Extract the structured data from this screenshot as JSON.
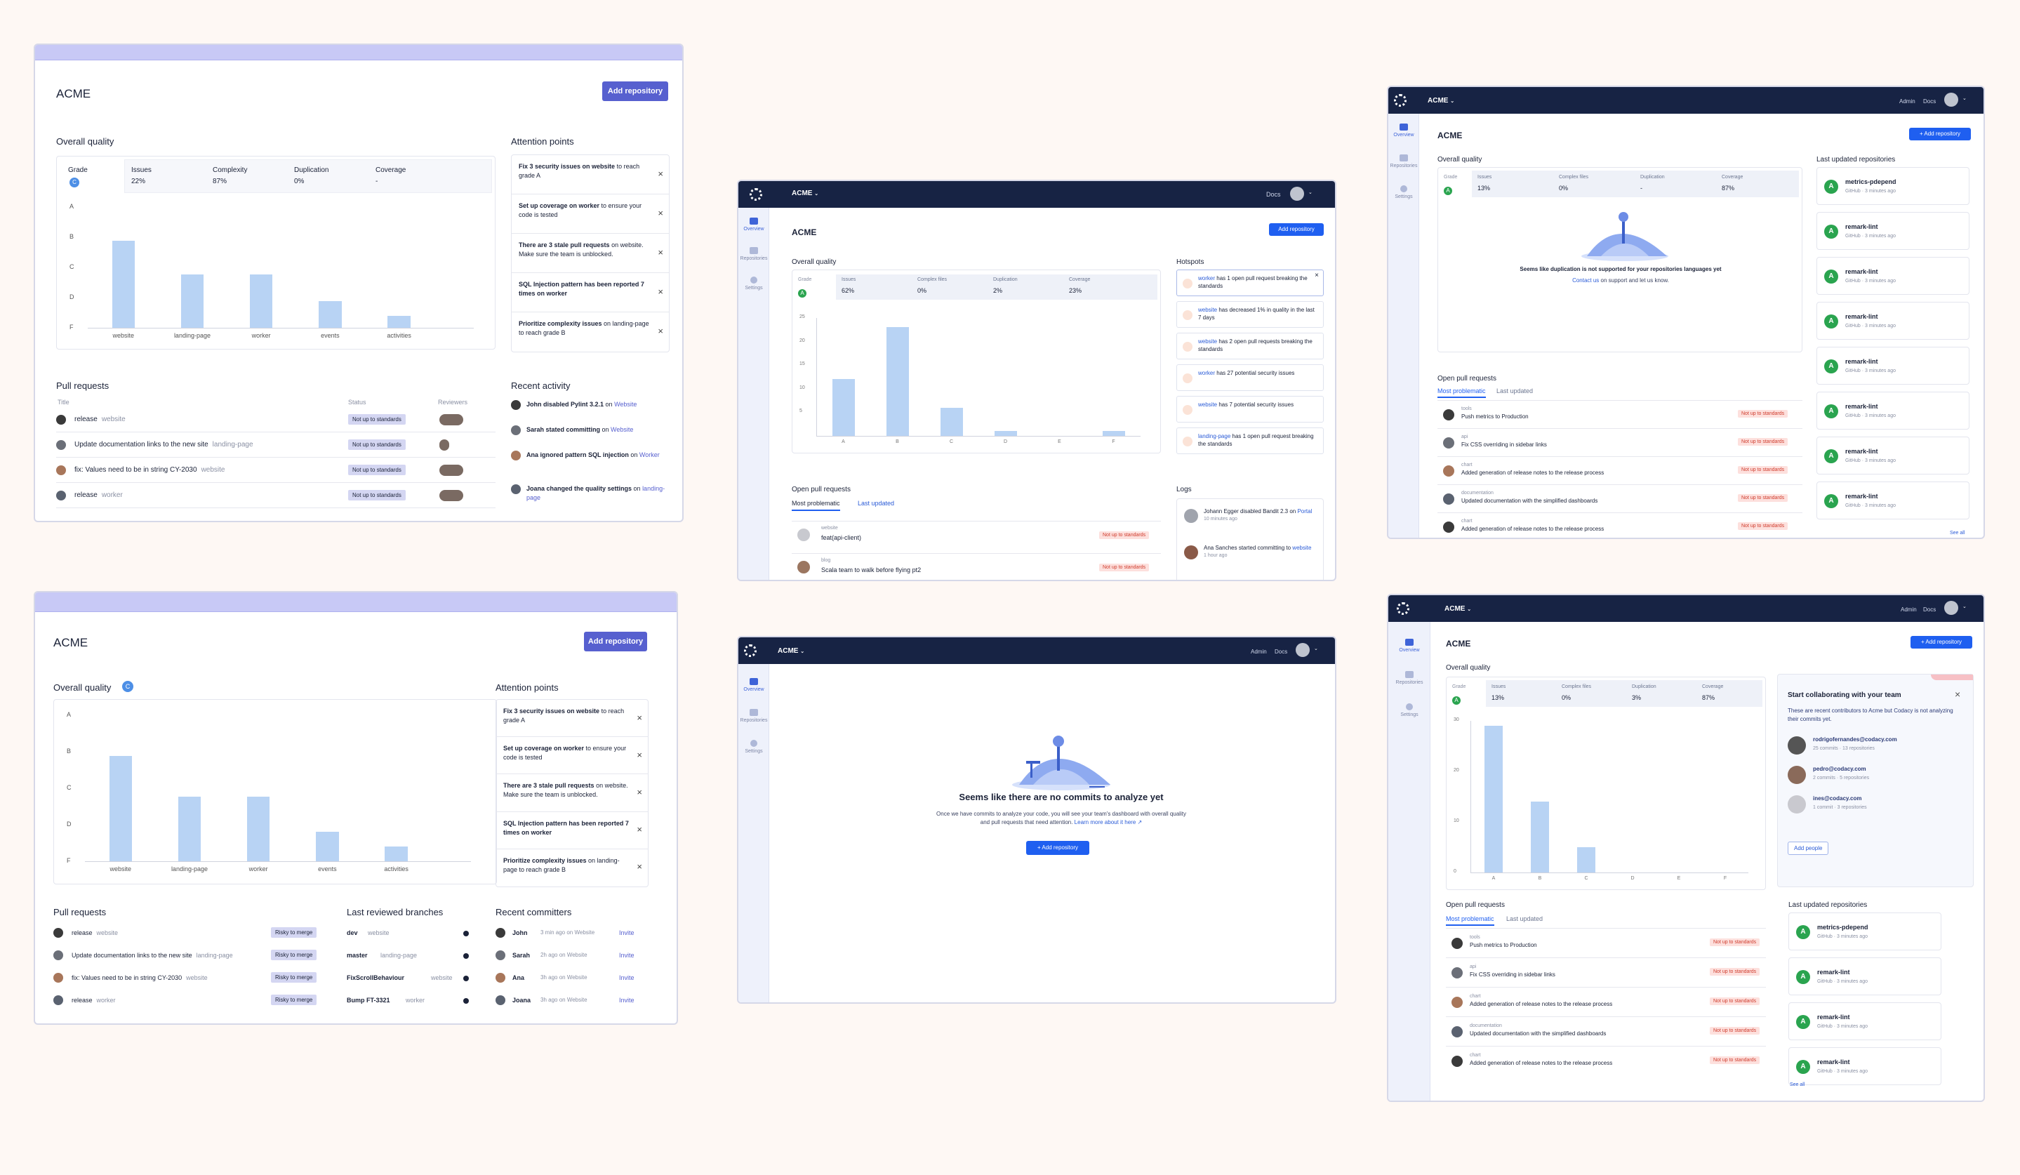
{
  "org": "ACME",
  "add_repository": "Add repository",
  "plus_add_repository": "+ Add repository",
  "overall_quality": "Overall quality",
  "attention_points": "Attention points",
  "hotspots": "Hotspots",
  "pull_requests": "Pull requests",
  "open_pull_requests": "Open pull requests",
  "recent_activity": "Recent activity",
  "logs": "Logs",
  "last_reviewed_branches": "Last reviewed branches",
  "recent_committers": "Recent committers",
  "last_updated_repositories": "Last updated repositories",
  "tabs": {
    "most": "Most problematic",
    "last": "Last updated"
  },
  "nav": {
    "overview": "Overview",
    "repositories": "Repositories",
    "settings": "Settings",
    "admin": "Admin",
    "docs": "Docs"
  },
  "see_all": "See all",
  "card1": {
    "stats": [
      {
        "label": "Grade",
        "value": "C"
      },
      {
        "label": "Issues",
        "value": "22%"
      },
      {
        "label": "Complexity",
        "value": "87%"
      },
      {
        "label": "Duplication",
        "value": "0%"
      },
      {
        "label": "Coverage",
        "value": "-"
      }
    ],
    "grades": [
      "A",
      "B",
      "C",
      "D",
      "F"
    ],
    "chart_data": {
      "type": "bar",
      "categories": [
        "website",
        "landing-page",
        "worker",
        "events",
        "activities"
      ],
      "values": [
        3.6,
        2.2,
        2.2,
        1.1,
        0.5
      ],
      "ylim": [
        0,
        5
      ]
    },
    "attention": [
      {
        "bold": "Fix 3 security issues on website",
        "rest": " to reach grade A"
      },
      {
        "bold": "Set up coverage on worker",
        "rest": " to ensure your code is tested"
      },
      {
        "bold": "There are 3 stale pull requests",
        "rest": " on website. Make sure the team is unblocked."
      },
      {
        "bold": "SQL Injection pattern has been reported 7 times on worker",
        "rest": ""
      },
      {
        "bold": "Prioritize complexity issues",
        "rest": " on landing-page to reach grade B"
      }
    ],
    "pr_headers": {
      "title": "Title",
      "status": "Status",
      "reviewers": "Reviewers"
    },
    "prs": [
      {
        "title": "release",
        "repo": "website",
        "status": "Not up to standards"
      },
      {
        "title": "Update documentation links to the new site",
        "repo": "landing-page",
        "status": "Not up to standards"
      },
      {
        "title": "fix: Values need to be in string CY-2030",
        "repo": "website",
        "status": "Not up to standards"
      },
      {
        "title": "release",
        "repo": "worker",
        "status": "Not up to standards"
      }
    ],
    "activity": [
      {
        "who": "John",
        "act": " disabled Pylint 3.2.1",
        "on": " on ",
        "target": "Website"
      },
      {
        "who": "Sarah",
        "act": " stated committing",
        "on": " on ",
        "target": "Website"
      },
      {
        "who": "Ana",
        "act": " ignored pattern SQL injection",
        "on": " on ",
        "target": "Worker"
      },
      {
        "who": "Joana",
        "act": " changed the quality settings",
        "on": " on ",
        "target": "landing-page"
      }
    ]
  },
  "card2": {
    "stats": [
      {
        "label": "Grade",
        "value": "A"
      },
      {
        "label": "Issues",
        "value": "62%"
      },
      {
        "label": "Complex files",
        "value": "0%"
      },
      {
        "label": "Duplication",
        "value": "2%"
      },
      {
        "label": "Coverage",
        "value": "23%"
      }
    ],
    "yticks": [
      "25",
      "20",
      "15",
      "10",
      "5"
    ],
    "chart_data": {
      "type": "bar",
      "categories": [
        "A",
        "B",
        "C",
        "D",
        "E",
        "F"
      ],
      "values": [
        12,
        23,
        6,
        1,
        0,
        1
      ],
      "ylim": [
        0,
        25
      ]
    },
    "hotspots": [
      {
        "repo": "worker",
        "text": " has 1 open pull request breaking the standards"
      },
      {
        "repo": "website",
        "text": " has decreased 1% in quality in the last 7 days"
      },
      {
        "repo": "website",
        "text": " has 2 open pull requests breaking the standards"
      },
      {
        "repo": "worker",
        "text": " has 27 potential security issues"
      },
      {
        "repo": "website",
        "text": " has 7 potential security issues"
      },
      {
        "repo": "landing-page",
        "text": " has 1 open pull request breaking the standards"
      }
    ],
    "open_prs": [
      {
        "repo": "website",
        "title": "feat(api-client)",
        "status": "Not up to standards"
      },
      {
        "repo": "blog",
        "title": "Scala team to walk before flying pt2",
        "status": "Not up to standards"
      }
    ],
    "logs": [
      {
        "text": "Johann Egger disabled Bandit 2.3 on ",
        "target": "Portal",
        "time": "10 minutes ago"
      },
      {
        "text": "Ana Sanches started committing to ",
        "target": "website",
        "time": "1 hour ago"
      }
    ]
  },
  "card3": {
    "stats": [
      {
        "label": "Grade",
        "value": "A"
      },
      {
        "label": "Issues",
        "value": "13%"
      },
      {
        "label": "Complex files",
        "value": "0%"
      },
      {
        "label": "Duplication",
        "value": "-"
      },
      {
        "label": "Coverage",
        "value": "87%"
      }
    ],
    "empty_msg": "Seems like duplication is not supported for your repositories languages yet",
    "empty_sub_link": "Contact us",
    "empty_sub": " on support and let us know.",
    "prs": [
      {
        "repo": "tools",
        "title": "Push metrics to Production",
        "status": "Not up to standards"
      },
      {
        "repo": "api",
        "title": "Fix CSS overriding in sidebar links",
        "status": "Not up to standards"
      },
      {
        "repo": "chart",
        "title": "Added generation of release notes to the release process",
        "status": "Not up to standards"
      },
      {
        "repo": "documentation",
        "title": "Updated documentation with the simplified dashboards",
        "status": "Not up to standards"
      },
      {
        "repo": "chart",
        "title": "Added generation of release notes to the release process",
        "status": "Not up to standards"
      }
    ],
    "repos": [
      {
        "name": "metrics-pdepend",
        "meta": "GitHub · 3 minutes ago"
      },
      {
        "name": "remark-lint",
        "meta": "GitHub · 3 minutes ago"
      },
      {
        "name": "remark-lint",
        "meta": "GitHub · 3 minutes ago"
      },
      {
        "name": "remark-lint",
        "meta": "GitHub · 3 minutes ago"
      },
      {
        "name": "remark-lint",
        "meta": "GitHub · 3 minutes ago"
      },
      {
        "name": "remark-lint",
        "meta": "GitHub · 3 minutes ago"
      },
      {
        "name": "remark-lint",
        "meta": "GitHub · 3 minutes ago"
      },
      {
        "name": "remark-lint",
        "meta": "GitHub · 3 minutes ago"
      }
    ]
  },
  "card4": {
    "grade": "C",
    "grades": [
      "A",
      "B",
      "C",
      "D",
      "F"
    ],
    "chart_data": {
      "type": "bar",
      "categories": [
        "website",
        "landing-page",
        "worker",
        "events",
        "activities"
      ],
      "values": [
        3.6,
        2.2,
        2.2,
        1.0,
        0.5
      ],
      "ylim": [
        0,
        5
      ]
    },
    "prs": [
      {
        "title": "release",
        "repo": "website",
        "status": "Risky to merge"
      },
      {
        "title": "Update documentation links to the new site",
        "repo": "landing-page",
        "status": "Risky to merge"
      },
      {
        "title": "fix: Values need to be in string CY-2030",
        "repo": "website",
        "status": "Risky to merge"
      },
      {
        "title": "release",
        "repo": "worker",
        "status": "Risky to merge"
      }
    ],
    "branches": [
      {
        "name": "dev",
        "repo": "website"
      },
      {
        "name": "master",
        "repo": "landing-page"
      },
      {
        "name": "FixScrollBehaviour",
        "repo": "website"
      },
      {
        "name": "Bump FT-3321",
        "repo": "worker"
      }
    ],
    "committers": [
      {
        "name": "John",
        "time": "3 min ago on Website",
        "action": "Invite"
      },
      {
        "name": "Sarah",
        "time": "2h ago on Website",
        "action": "Invite"
      },
      {
        "name": "Ana",
        "time": "3h ago on Website",
        "action": "Invite"
      },
      {
        "name": "Joana",
        "time": "3h ago on Website",
        "action": "Invite"
      }
    ]
  },
  "card5": {
    "title": "Seems like there are no commits to analyze yet",
    "body": "Once we have commits to analyze your code, you will see your team's dashboard with overall quality and pull requests that need attention.",
    "learn_more": "Learn more about it here"
  },
  "card6": {
    "stats": [
      {
        "label": "Grade",
        "value": "A"
      },
      {
        "label": "Issues",
        "value": "13%"
      },
      {
        "label": "Complex files",
        "value": "0%"
      },
      {
        "label": "Duplication",
        "value": "3%"
      },
      {
        "label": "Coverage",
        "value": "87%"
      }
    ],
    "yticks": [
      "30",
      "20",
      "10",
      "0"
    ],
    "chart_data": {
      "type": "bar",
      "categories": [
        "A",
        "B",
        "C",
        "D",
        "E",
        "F"
      ],
      "values": [
        29,
        14,
        5,
        0,
        0,
        0
      ],
      "ylim": [
        0,
        30
      ]
    },
    "collab_title": "Start collaborating with your team",
    "collab_body": "These are recent contributors to Acme but Codacy is not analyzing their commits yet.",
    "people": [
      {
        "email": "rodrigofernandes@codacy.com",
        "meta": "25 commits · 13 repositories"
      },
      {
        "email": "pedro@codacy.com",
        "meta": "2 commits · 5 repositories"
      },
      {
        "email": "ines@codacy.com",
        "meta": "1 commit · 3 repositories"
      }
    ],
    "add_people": "Add people",
    "prs": [
      {
        "repo": "tools",
        "title": "Push metrics to Production",
        "status": "Not up to standards"
      },
      {
        "repo": "api",
        "title": "Fix CSS overriding in sidebar links",
        "status": "Not up to standards"
      },
      {
        "repo": "chart",
        "title": "Added generation of release notes to the release process",
        "status": "Not up to standards"
      },
      {
        "repo": "documentation",
        "title": "Updated documentation with the simplified dashboards",
        "status": "Not up to standards"
      },
      {
        "repo": "chart",
        "title": "Added generation of release notes to the release process",
        "status": "Not up to standards"
      }
    ],
    "repos": [
      {
        "name": "metrics-pdepend",
        "meta": "GitHub · 3 minutes ago"
      },
      {
        "name": "remark-lint",
        "meta": "GitHub · 3 minutes ago"
      },
      {
        "name": "remark-lint",
        "meta": "GitHub · 3 minutes ago"
      },
      {
        "name": "remark-lint",
        "meta": "GitHub · 3 minutes ago"
      }
    ]
  },
  "colors": {
    "accent": "#5760cf",
    "navy": "#172344",
    "blue": "#1f5ff0",
    "bar": "#b8d3f4",
    "lavender": "#c8c9f6",
    "bad": "#cf3b2c",
    "good": "#2aa44f"
  }
}
